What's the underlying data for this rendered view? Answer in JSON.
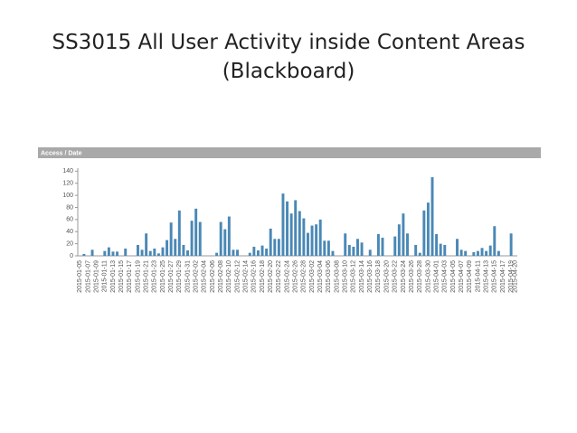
{
  "chart_data": {
    "type": "bar",
    "title": [
      "SS3015 All User Activity inside Content Areas",
      "(Blackboard)"
    ],
    "panel_title": "Access / Date",
    "categories": [
      "2015-01-05",
      null,
      "2015-01-07",
      null,
      "2015-01-09",
      null,
      "2015-01-11",
      null,
      "2015-01-13",
      null,
      "2015-01-15",
      null,
      "2015-01-17",
      null,
      "2015-01-19",
      null,
      "2015-01-21",
      null,
      "2015-01-23",
      null,
      "2015-01-25",
      null,
      "2015-01-27",
      null,
      "2015-01-29",
      null,
      "2015-01-31",
      null,
      "2015-02-02",
      null,
      "2015-02-04",
      null,
      "2015-02-06",
      null,
      "2015-02-08",
      null,
      "2015-02-10",
      null,
      "2015-02-12",
      null,
      "2015-02-14",
      null,
      "2015-02-16",
      null,
      "2015-02-18",
      null,
      "2015-02-20",
      null,
      "2015-02-22",
      null,
      "2015-02-24",
      null,
      "2015-02-26",
      null,
      "2015-02-28",
      null,
      "2015-03-02",
      null,
      "2015-03-04",
      null,
      "2015-03-06",
      null,
      "2015-03-08",
      null,
      "2015-03-10",
      null,
      "2015-03-12",
      null,
      "2015-03-14",
      null,
      "2015-03-16",
      null,
      "2015-03-18",
      null,
      "2015-03-20",
      null,
      "2015-03-22",
      null,
      "2015-03-24",
      null,
      "2015-03-26",
      null,
      "2015-03-28",
      null,
      "2015-03-30",
      null,
      "2015-04-01",
      null,
      "2015-04-03",
      null,
      "2015-04-05",
      null,
      "2015-04-07",
      null,
      "2015-04-09",
      null,
      "2015-04-11",
      null,
      "2015-04-13",
      null,
      "2015-04-15",
      null,
      "2015-04-17",
      null,
      "2015-04-19",
      "2015-04-20"
    ],
    "values": [
      0,
      3,
      0,
      10,
      0,
      0,
      8,
      14,
      7,
      7,
      0,
      12,
      0,
      0,
      18,
      10,
      37,
      8,
      12,
      4,
      14,
      26,
      55,
      28,
      75,
      18,
      9,
      58,
      78,
      56,
      0,
      0,
      0,
      5,
      56,
      44,
      65,
      10,
      10,
      0,
      0,
      5,
      15,
      9,
      17,
      12,
      45,
      28,
      28,
      103,
      90,
      70,
      92,
      74,
      62,
      38,
      50,
      52,
      60,
      25,
      25,
      8,
      0,
      0,
      37,
      18,
      15,
      28,
      22,
      0,
      10,
      0,
      36,
      30,
      0,
      0,
      32,
      52,
      70,
      37,
      0,
      18,
      5,
      75,
      88,
      130,
      36,
      20,
      18,
      0,
      0,
      28,
      10,
      8,
      0,
      6,
      8,
      13,
      8,
      17,
      49,
      8,
      0,
      0,
      37,
      0
    ],
    "color": "#4a88b5",
    "ylim": [
      0,
      145
    ],
    "yticks": [
      0,
      20,
      40,
      60,
      80,
      100,
      120,
      140
    ]
  }
}
